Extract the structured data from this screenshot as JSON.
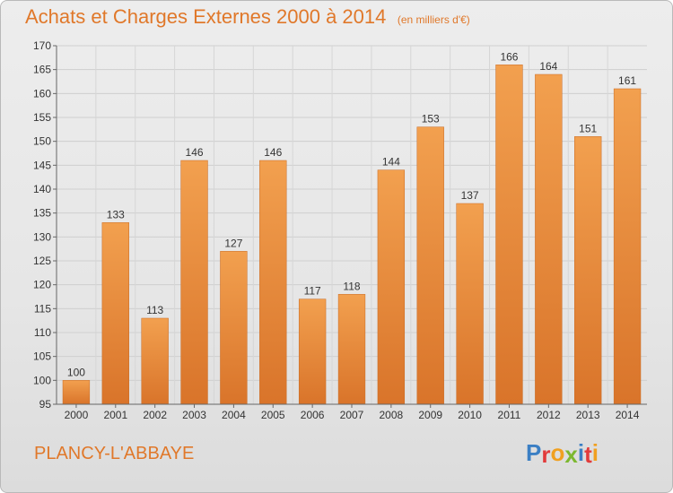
{
  "chart_data": {
    "type": "bar",
    "title": "Achats et Charges Externes 2000 à 2014",
    "subtitle": "(en milliers d'€)",
    "categories": [
      "2000",
      "2001",
      "2002",
      "2003",
      "2004",
      "2005",
      "2006",
      "2007",
      "2008",
      "2009",
      "2010",
      "2011",
      "2012",
      "2013",
      "2014"
    ],
    "values": [
      100,
      133,
      113,
      146,
      127,
      146,
      117,
      118,
      144,
      153,
      137,
      166,
      164,
      151,
      161
    ],
    "ylim": [
      95,
      170
    ],
    "yticks": [
      95,
      100,
      105,
      110,
      115,
      120,
      125,
      130,
      135,
      140,
      145,
      150,
      155,
      160,
      165,
      170
    ],
    "xlabel": "",
    "ylabel": "",
    "grid": true,
    "bar_color": "#f2a04f",
    "bar_color_dark": "#d9742a"
  },
  "footer": {
    "place": "PLANCY-L'ABBAYE",
    "logo_letters": [
      {
        "ch": "P",
        "color": "#3b7fc4"
      },
      {
        "ch": "r",
        "color": "#e23b3b"
      },
      {
        "ch": "o",
        "color": "#f0a020"
      },
      {
        "ch": "x",
        "color": "#7cb82f"
      },
      {
        "ch": "i",
        "color": "#3b7fc4"
      },
      {
        "ch": "t",
        "color": "#e23b3b"
      },
      {
        "ch": "i",
        "color": "#f0a020"
      }
    ]
  }
}
